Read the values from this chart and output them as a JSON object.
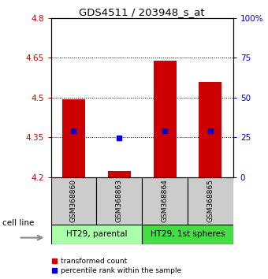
{
  "title": "GDS4511 / 203948_s_at",
  "samples": [
    "GSM368860",
    "GSM368863",
    "GSM368864",
    "GSM368865"
  ],
  "bar_values": [
    4.495,
    4.222,
    4.638,
    4.558
  ],
  "bar_base": 4.2,
  "blue_values": [
    4.374,
    4.348,
    4.374,
    4.374
  ],
  "ylim": [
    4.2,
    4.8
  ],
  "yticks_left": [
    4.2,
    4.35,
    4.5,
    4.65,
    4.8
  ],
  "yticks_right": [
    0,
    25,
    50,
    75,
    100
  ],
  "yticks_right_labels": [
    "0",
    "25",
    "50",
    "75",
    "100%"
  ],
  "bar_color": "#cc0000",
  "blue_color": "#0000cc",
  "grid_ticks": [
    4.35,
    4.5,
    4.65
  ],
  "cell_lines": [
    "HT29, parental",
    "HT29, 1st spheres"
  ],
  "cell_line_spans": [
    [
      0,
      2
    ],
    [
      2,
      4
    ]
  ],
  "cell_line_colors": [
    "#aaffaa",
    "#44dd44"
  ],
  "sample_box_color": "#cccccc",
  "bar_width": 0.5,
  "left_tick_color": "#cc0000",
  "right_tick_color": "#0000cc",
  "legend_labels": [
    "transformed count",
    "percentile rank within the sample"
  ],
  "legend_colors": [
    "#cc0000",
    "#0000cc"
  ]
}
